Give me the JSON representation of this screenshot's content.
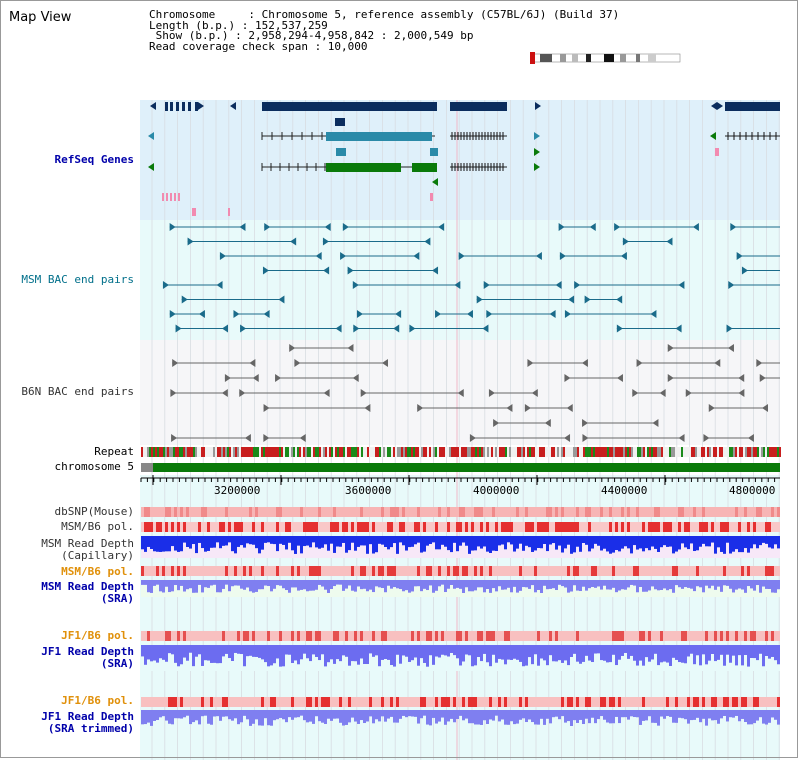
{
  "header": {
    "title": "Map View",
    "info_lines": [
      "Chromosome     : Chromosome 5, reference assembly (C57BL/6J) (Build 37)",
      "Length (b.p.) : 152,537,259",
      " Show (b.p.) : 2,958,294-4,958,842 : 2,000,549 bp",
      "Read coverage check span : 10,000"
    ]
  },
  "tracks": {
    "refseq": "RefSeq Genes",
    "msm_bac": "MSM BAC end pairs",
    "b6n_bac": "B6N BAC end pairs",
    "repeat": "Repeat",
    "chromosome": "chromosome 5",
    "dbsnp": "dbSNP(Mouse)",
    "msm_b6_pol_1": "MSM/B6 pol.",
    "msm_depth_cap_1": "MSM Read Depth",
    "msm_depth_cap_2": "(Capillary)",
    "msm_b6_pol_2": "MSM/B6 pol.",
    "msm_depth_sra_1": "MSM Read Depth",
    "msm_depth_sra_2": "(SRA)",
    "jf1_b6_pol_1": "JF1/B6 pol.",
    "jf1_depth_sra_1": "JF1 Read Depth",
    "jf1_depth_sra_2": "(SRA)",
    "jf1_b6_pol_2": "JF1/B6 pol.",
    "jf1_depth_trim_1": "JF1 Read Depth",
    "jf1_depth_trim_2": "(SRA trimmed)"
  },
  "axis": {
    "ticks": [
      "3200000",
      "3600000",
      "4000000",
      "4400000",
      "4800000"
    ]
  },
  "colors": {
    "refseq_bg": "#dff0fa",
    "bac_bg": "#e8fafa",
    "b6n_bg": "#f7f7f9",
    "navy": "#0b2d5e",
    "teal": "#2a8aa8",
    "green": "#0a7a0a",
    "depth_blue": "#1a2ee8",
    "depth_light": "#7f7ff0",
    "pol_red": "#e03030"
  }
}
